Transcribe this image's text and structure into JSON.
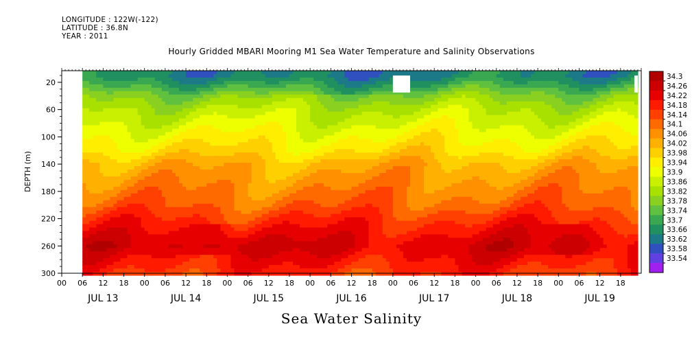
{
  "header": {
    "longitude": "LONGITUDE : 122W(-122)",
    "latitude": "LATITUDE : 36.8N",
    "year": "YEAR : 2011"
  },
  "chart_data": {
    "type": "heatmap",
    "title": "Hourly Gridded MBARI Mooring M1 Sea Water Temperature and Salinity Observations",
    "variable_label": "Sea Water Salinity",
    "ylabel": "DEPTH (m)",
    "y_reversed": true,
    "ylim": [
      0,
      300
    ],
    "y_ticks": [
      "20",
      "60",
      "100",
      "140",
      "180",
      "220",
      "260",
      "300"
    ],
    "x_range_hours": [
      0,
      168
    ],
    "x_hour_ticks": [
      "00",
      "06",
      "12",
      "18",
      "00",
      "06",
      "12",
      "18",
      "00",
      "06",
      "12",
      "18",
      "00",
      "06",
      "12",
      "18",
      "00",
      "06",
      "12",
      "18",
      "00",
      "06",
      "12",
      "18",
      "00",
      "06",
      "12",
      "18"
    ],
    "x_day_labels": [
      "JUL 13",
      "JUL 14",
      "JUL 15",
      "JUL 16",
      "JUL 17",
      "JUL 18",
      "JUL 19"
    ],
    "data_start_hour": 6,
    "data_end_hour": 167,
    "missing_regions": [
      {
        "from_hour": 96,
        "to_hour": 101,
        "depth_from": 10,
        "depth_to": 35
      },
      {
        "from_hour": 166,
        "to_hour": 167,
        "depth_from": 10,
        "depth_to": 35
      }
    ],
    "colorbar_levels": [
      "34.3",
      "34.26",
      "34.22",
      "34.18",
      "34.14",
      "34.1",
      "34.06",
      "34.02",
      "33.98",
      "33.94",
      "33.9",
      "33.86",
      "33.82",
      "33.78",
      "33.74",
      "33.7",
      "33.66",
      "33.62",
      "33.58",
      "33.54"
    ],
    "colorbar_colors": [
      "#b00000",
      "#cc0000",
      "#e60000",
      "#ff1a00",
      "#ff4000",
      "#ff6a00",
      "#ff9000",
      "#ffb000",
      "#ffd000",
      "#ffee00",
      "#eeff00",
      "#c8f000",
      "#a8e000",
      "#8ad020",
      "#60c040",
      "#3aa850",
      "#209060",
      "#1c7a88",
      "#3050c0",
      "#6040e0",
      "#a020f0"
    ],
    "depth_profile_salinity": [
      {
        "depth": 10,
        "value": 33.66
      },
      {
        "depth": 20,
        "value": 33.7
      },
      {
        "depth": 40,
        "value": 33.8
      },
      {
        "depth": 60,
        "value": 33.86
      },
      {
        "depth": 80,
        "value": 33.9
      },
      {
        "depth": 100,
        "value": 33.94
      },
      {
        "depth": 120,
        "value": 33.98
      },
      {
        "depth": 140,
        "value": 34.04
      },
      {
        "depth": 160,
        "value": 34.07
      },
      {
        "depth": 180,
        "value": 34.1
      },
      {
        "depth": 200,
        "value": 34.13
      },
      {
        "depth": 220,
        "value": 34.18
      },
      {
        "depth": 240,
        "value": 34.22
      },
      {
        "depth": 260,
        "value": 34.26
      },
      {
        "depth": 280,
        "value": 34.22
      },
      {
        "depth": 300,
        "value": 34.18
      }
    ]
  }
}
